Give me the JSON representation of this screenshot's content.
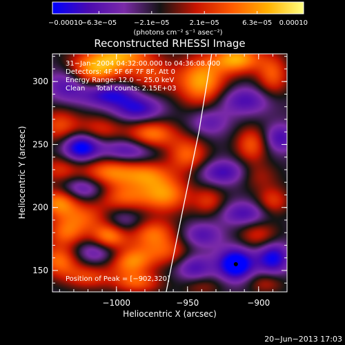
{
  "chart_data": {
    "type": "heatmap",
    "title": "Reconstructed RHESSI Image",
    "xlabel": "Heliocentric X (arcsec)",
    "ylabel": "Heliocentric Y (arcsec)",
    "xlim": [
      -1045,
      -880
    ],
    "ylim": [
      133,
      322
    ],
    "xticks": [
      {
        "value": -1000,
        "label": "−1000"
      },
      {
        "value": -950,
        "label": "−950"
      },
      {
        "value": -900,
        "label": "−900"
      }
    ],
    "yticks": [
      {
        "value": 150,
        "label": "150"
      },
      {
        "value": 200,
        "label": "200"
      },
      {
        "value": 250,
        "label": "250"
      },
      {
        "value": 300,
        "label": "300"
      }
    ],
    "colorbar": {
      "range": [
        -0.0001,
        0.0001
      ],
      "tick_values": [
        -0.0001,
        -6.3e-05,
        -2.1e-05,
        2.1e-05,
        6.3e-05,
        0.0001
      ],
      "tick_labels": [
        "−0.00010",
        "−6.3e−05",
        "−2.1e−05",
        "2.1e−05",
        "6.3e−05",
        "0.00010"
      ],
      "units": "(photons cm⁻² s⁻¹ asec⁻²)",
      "colors": [
        "#0000ff",
        "#4a0ab0",
        "#7a2aa8",
        "#141414",
        "#c81400",
        "#ff5a00",
        "#ffb000",
        "#ffff80"
      ]
    },
    "annotations": [
      "31−Jan−2004 04:32:00.000 to 04:36:08.000",
      "Detectors: 4F 5F 6F 7F 8F, Att 0",
      "Energy Range: 12.0 − 25.0 keV",
      "Clean     Total counts: 2.15E+03"
    ],
    "peak_text": "Position of Peak = [−902,320]",
    "limb_curve": [
      [
        -965,
        133
      ],
      [
        -953,
        200
      ],
      [
        -942,
        260
      ],
      [
        -933,
        322
      ]
    ],
    "marker": {
      "x": -916,
      "y": 155
    },
    "features": [
      {
        "x": -1015,
        "y": 310,
        "amp": 0.9,
        "sx": 14,
        "sy": 10
      },
      {
        "x": -995,
        "y": 322,
        "amp": 0.7,
        "sx": 14,
        "sy": 8
      },
      {
        "x": -975,
        "y": 305,
        "amp": 0.5,
        "sx": 12,
        "sy": 10
      },
      {
        "x": -1035,
        "y": 298,
        "amp": -0.5,
        "sx": 10,
        "sy": 10
      },
      {
        "x": -1005,
        "y": 290,
        "amp": -0.7,
        "sx": 14,
        "sy": 7
      },
      {
        "x": -985,
        "y": 278,
        "amp": -0.6,
        "sx": 12,
        "sy": 7
      },
      {
        "x": -1040,
        "y": 265,
        "amp": 0.55,
        "sx": 10,
        "sy": 10
      },
      {
        "x": -1012,
        "y": 262,
        "amp": 0.45,
        "sx": 12,
        "sy": 8
      },
      {
        "x": -975,
        "y": 258,
        "amp": 0.75,
        "sx": 12,
        "sy": 8
      },
      {
        "x": -950,
        "y": 242,
        "amp": 0.65,
        "sx": 10,
        "sy": 10
      },
      {
        "x": -1025,
        "y": 248,
        "amp": -0.9,
        "sx": 9,
        "sy": 8
      },
      {
        "x": -993,
        "y": 245,
        "amp": -0.55,
        "sx": 14,
        "sy": 7
      },
      {
        "x": -1040,
        "y": 230,
        "amp": 0.45,
        "sx": 10,
        "sy": 8
      },
      {
        "x": -1005,
        "y": 228,
        "amp": 0.75,
        "sx": 14,
        "sy": 9
      },
      {
        "x": -978,
        "y": 226,
        "amp": 0.6,
        "sx": 12,
        "sy": 8
      },
      {
        "x": -1025,
        "y": 215,
        "amp": -0.6,
        "sx": 14,
        "sy": 7
      },
      {
        "x": -995,
        "y": 208,
        "amp": 0.6,
        "sx": 14,
        "sy": 8
      },
      {
        "x": -965,
        "y": 210,
        "amp": 0.75,
        "sx": 12,
        "sy": 10
      },
      {
        "x": -1040,
        "y": 205,
        "amp": 0.85,
        "sx": 10,
        "sy": 9
      },
      {
        "x": -1020,
        "y": 192,
        "amp": 0.55,
        "sx": 12,
        "sy": 8
      },
      {
        "x": -1000,
        "y": 188,
        "amp": -0.55,
        "sx": 12,
        "sy": 8
      },
      {
        "x": -1035,
        "y": 180,
        "amp": 0.6,
        "sx": 10,
        "sy": 8
      },
      {
        "x": -1005,
        "y": 178,
        "amp": 0.95,
        "sx": 9,
        "sy": 9
      },
      {
        "x": -975,
        "y": 180,
        "amp": 0.65,
        "sx": 12,
        "sy": 8
      },
      {
        "x": -1010,
        "y": 165,
        "amp": -0.55,
        "sx": 14,
        "sy": 7
      },
      {
        "x": -1040,
        "y": 158,
        "amp": 0.7,
        "sx": 10,
        "sy": 9
      },
      {
        "x": -990,
        "y": 158,
        "amp": 0.85,
        "sx": 11,
        "sy": 9
      },
      {
        "x": -965,
        "y": 165,
        "amp": 0.5,
        "sx": 12,
        "sy": 8
      },
      {
        "x": -1020,
        "y": 145,
        "amp": 0.5,
        "sx": 12,
        "sy": 7
      },
      {
        "x": -985,
        "y": 140,
        "amp": 0.55,
        "sx": 12,
        "sy": 6
      },
      {
        "x": -940,
        "y": 300,
        "amp": 0.9,
        "sx": 12,
        "sy": 14
      },
      {
        "x": -915,
        "y": 318,
        "amp": 0.9,
        "sx": 12,
        "sy": 8
      },
      {
        "x": -890,
        "y": 305,
        "amp": 0.6,
        "sx": 8,
        "sy": 12
      },
      {
        "x": -910,
        "y": 285,
        "amp": -0.5,
        "sx": 14,
        "sy": 8
      },
      {
        "x": -935,
        "y": 268,
        "amp": -0.4,
        "sx": 10,
        "sy": 8
      },
      {
        "x": -905,
        "y": 250,
        "amp": 0.6,
        "sx": 8,
        "sy": 10
      },
      {
        "x": -885,
        "y": 255,
        "amp": -0.5,
        "sx": 8,
        "sy": 8
      },
      {
        "x": -925,
        "y": 228,
        "amp": -0.55,
        "sx": 12,
        "sy": 7
      },
      {
        "x": -900,
        "y": 225,
        "amp": 0.3,
        "sx": 10,
        "sy": 8
      },
      {
        "x": -935,
        "y": 205,
        "amp": 0.45,
        "sx": 8,
        "sy": 8
      },
      {
        "x": -890,
        "y": 205,
        "amp": 0.5,
        "sx": 8,
        "sy": 8
      },
      {
        "x": -910,
        "y": 195,
        "amp": -0.5,
        "sx": 12,
        "sy": 7
      },
      {
        "x": -940,
        "y": 178,
        "amp": -0.45,
        "sx": 10,
        "sy": 7
      },
      {
        "x": -900,
        "y": 178,
        "amp": 0.45,
        "sx": 10,
        "sy": 8
      },
      {
        "x": -916,
        "y": 155,
        "amp": -1.0,
        "sx": 9,
        "sy": 9
      },
      {
        "x": -945,
        "y": 152,
        "amp": -0.5,
        "sx": 9,
        "sy": 8
      },
      {
        "x": -890,
        "y": 160,
        "amp": -0.75,
        "sx": 8,
        "sy": 9
      },
      {
        "x": -940,
        "y": 138,
        "amp": 0.3,
        "sx": 10,
        "sy": 6
      },
      {
        "x": -895,
        "y": 140,
        "amp": 0.35,
        "sx": 9,
        "sy": 6
      }
    ]
  },
  "footer_timestamp": "20−Jun−2013 17:03"
}
